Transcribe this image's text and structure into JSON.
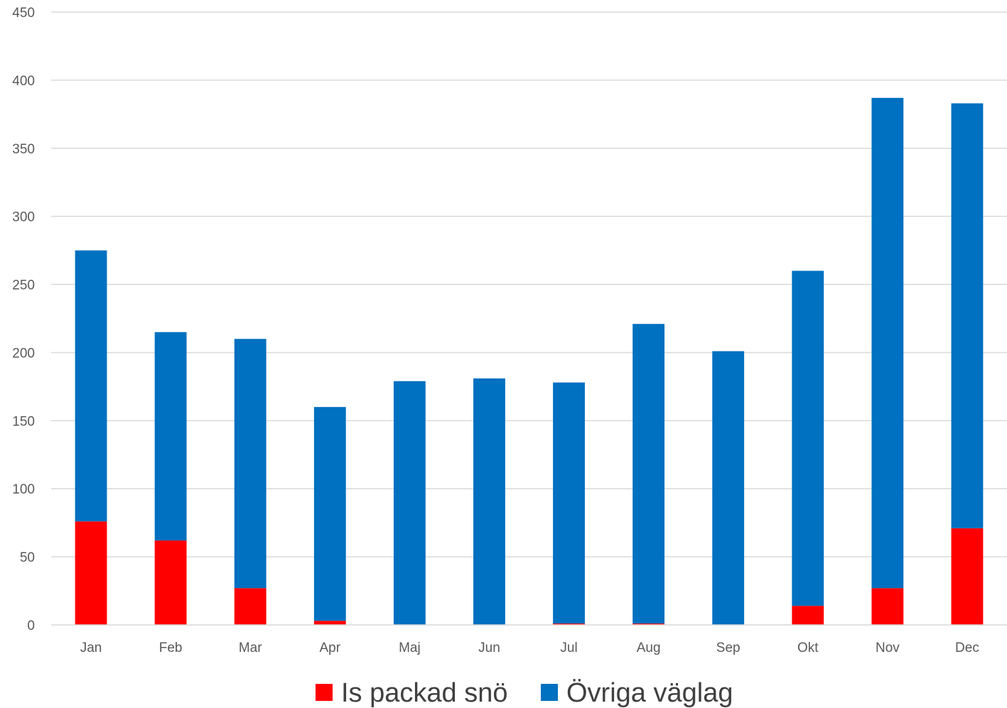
{
  "chart_data": {
    "type": "bar",
    "stacked": true,
    "categories": [
      "Jan",
      "Feb",
      "Mar",
      "Apr",
      "Maj",
      "Jun",
      "Jul",
      "Aug",
      "Sep",
      "Okt",
      "Nov",
      "Dec"
    ],
    "series": [
      {
        "name": "Is packad snö",
        "color": "#ff0000",
        "values": [
          76,
          62,
          27,
          3,
          0,
          0,
          1,
          1,
          0,
          14,
          27,
          71
        ]
      },
      {
        "name": "Övriga väglag",
        "color": "#0070c0",
        "values": [
          199,
          153,
          183,
          157,
          179,
          181,
          177,
          220,
          201,
          246,
          360,
          312
        ]
      }
    ],
    "ylim": [
      0,
      450
    ],
    "yticks": [
      0,
      50,
      100,
      150,
      200,
      250,
      300,
      350,
      400,
      450
    ],
    "grid": true,
    "legend": "bottom"
  }
}
